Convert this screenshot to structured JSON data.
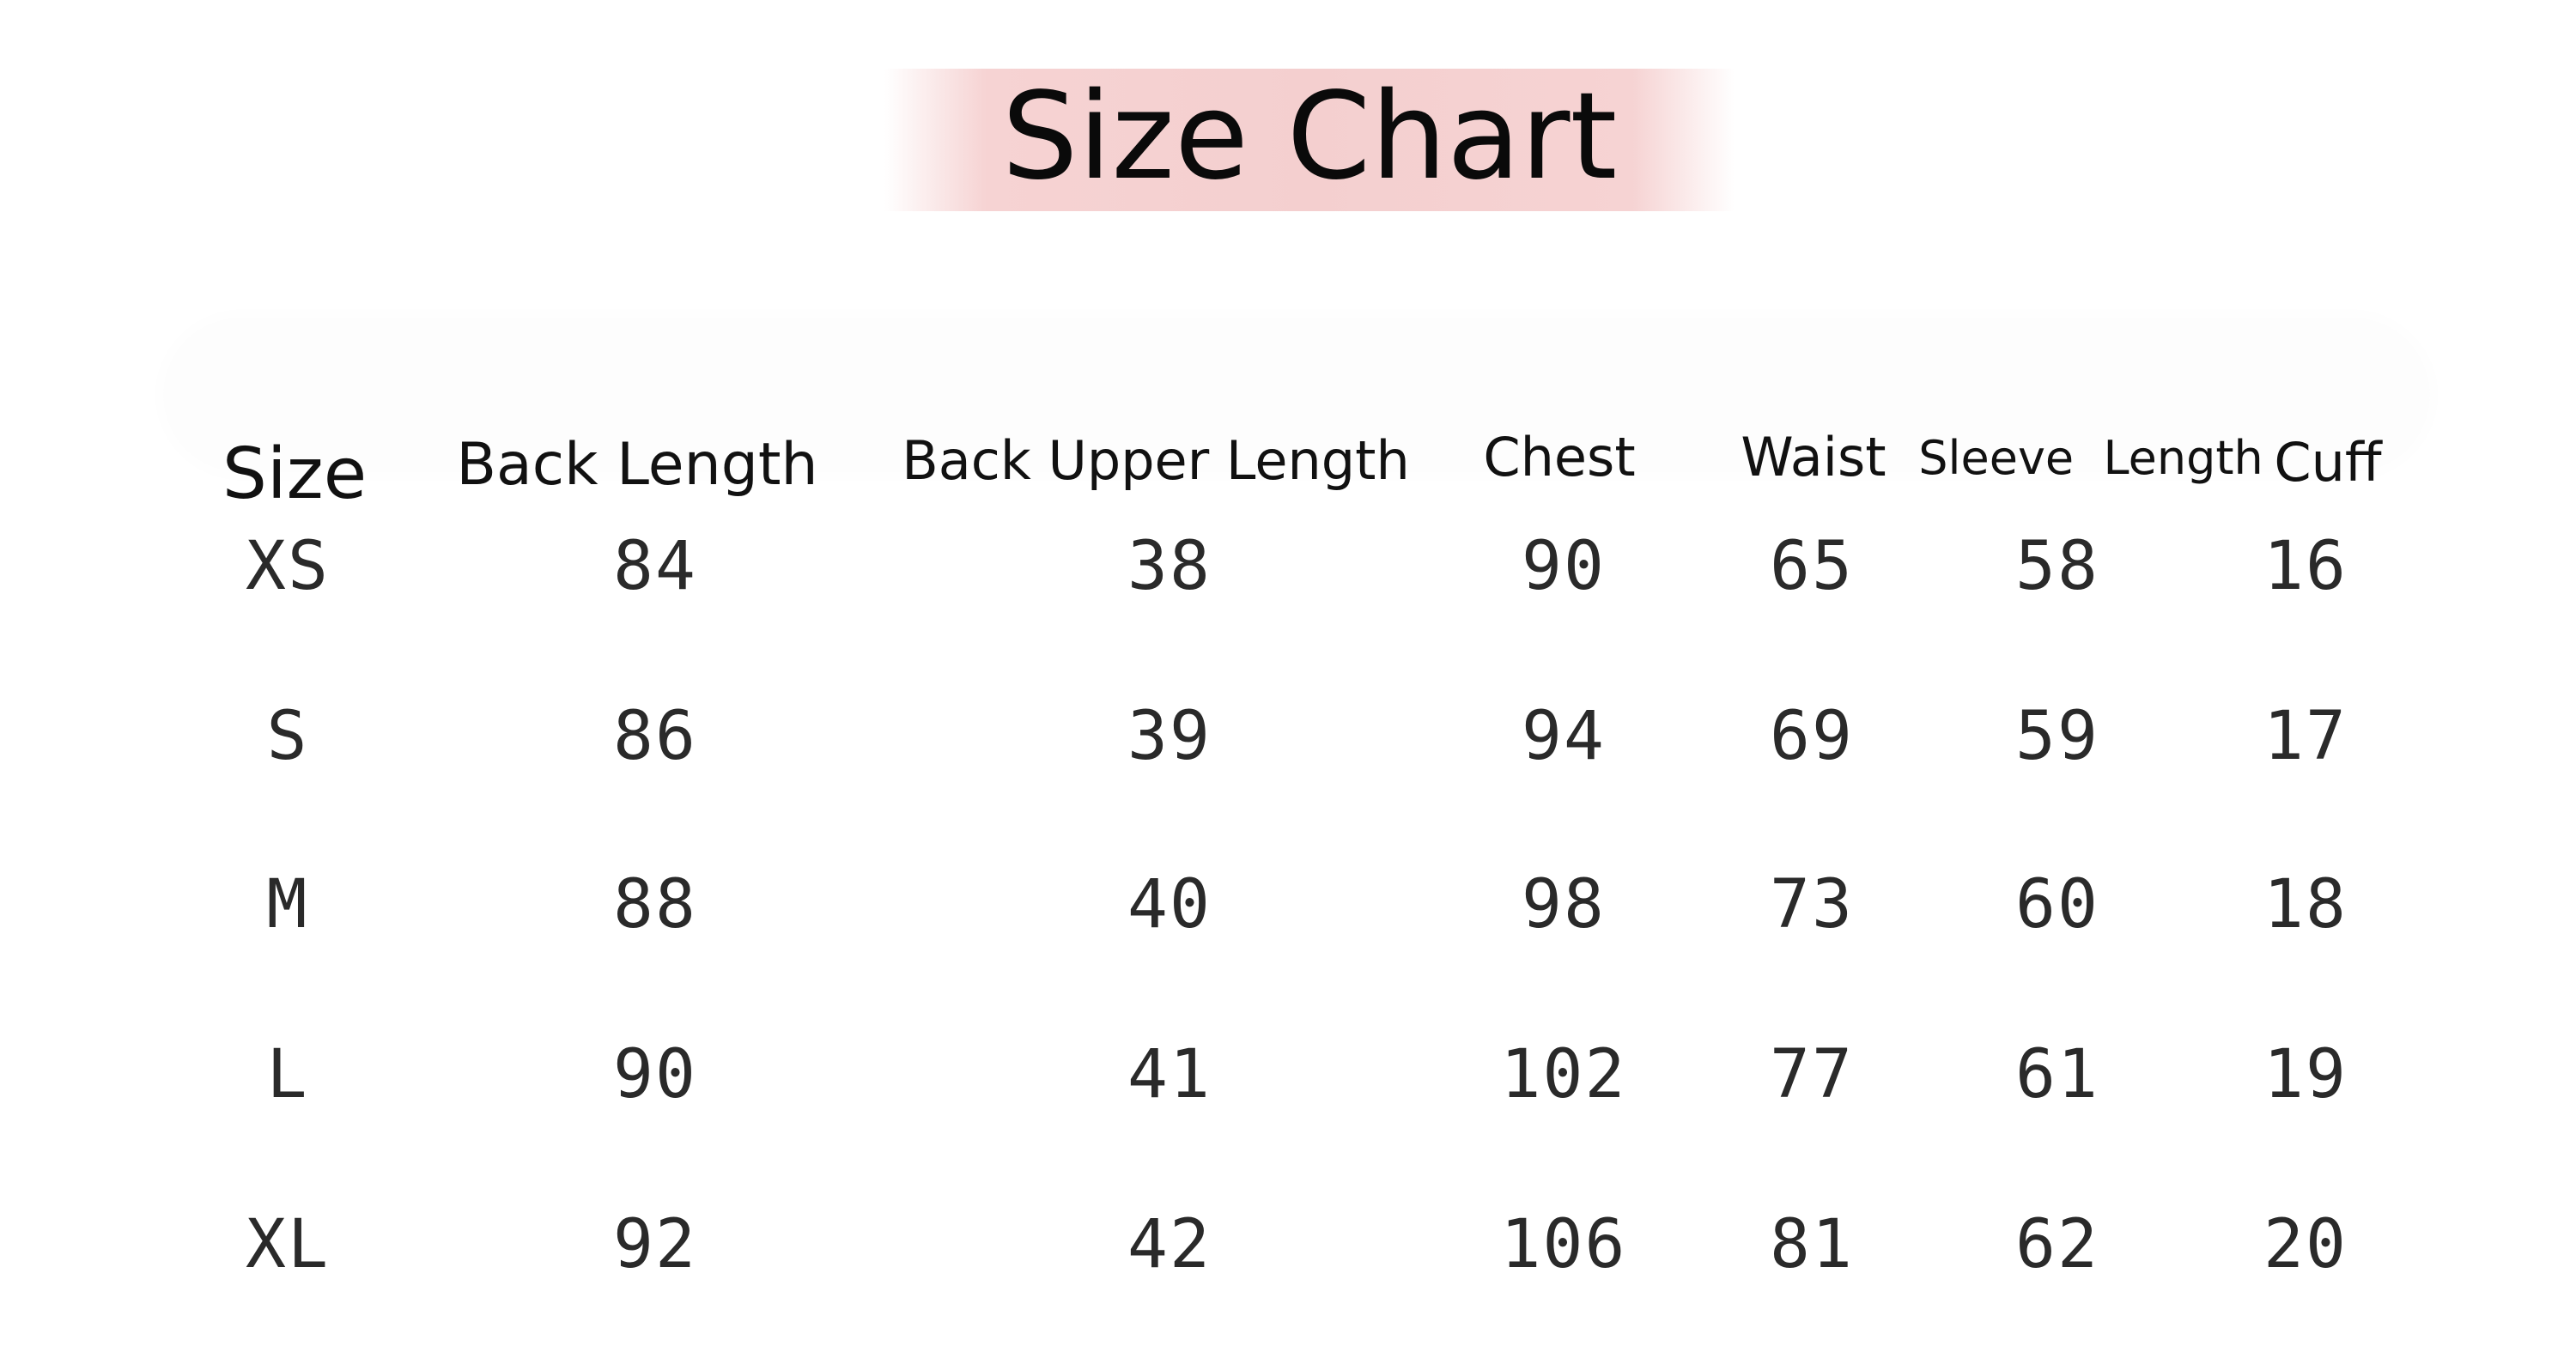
{
  "title": "Size Chart",
  "accent_color": "#f4cfcf",
  "table": {
    "headers": [
      "Size",
      "Back Length",
      "Back Upper Length",
      "Chest",
      "Waist",
      "Sleeve  Length",
      "Cuff"
    ],
    "rows": [
      [
        "XS",
        "84",
        "38",
        "90",
        "65",
        "58",
        "16"
      ],
      [
        "S",
        "86",
        "39",
        "94",
        "69",
        "59",
        "17"
      ],
      [
        "M",
        "88",
        "40",
        "98",
        "73",
        "60",
        "18"
      ],
      [
        "L",
        "90",
        "41",
        "102",
        "77",
        "61",
        "19"
      ],
      [
        "XL",
        "92",
        "42",
        "106",
        "81",
        "62",
        "20"
      ]
    ]
  }
}
